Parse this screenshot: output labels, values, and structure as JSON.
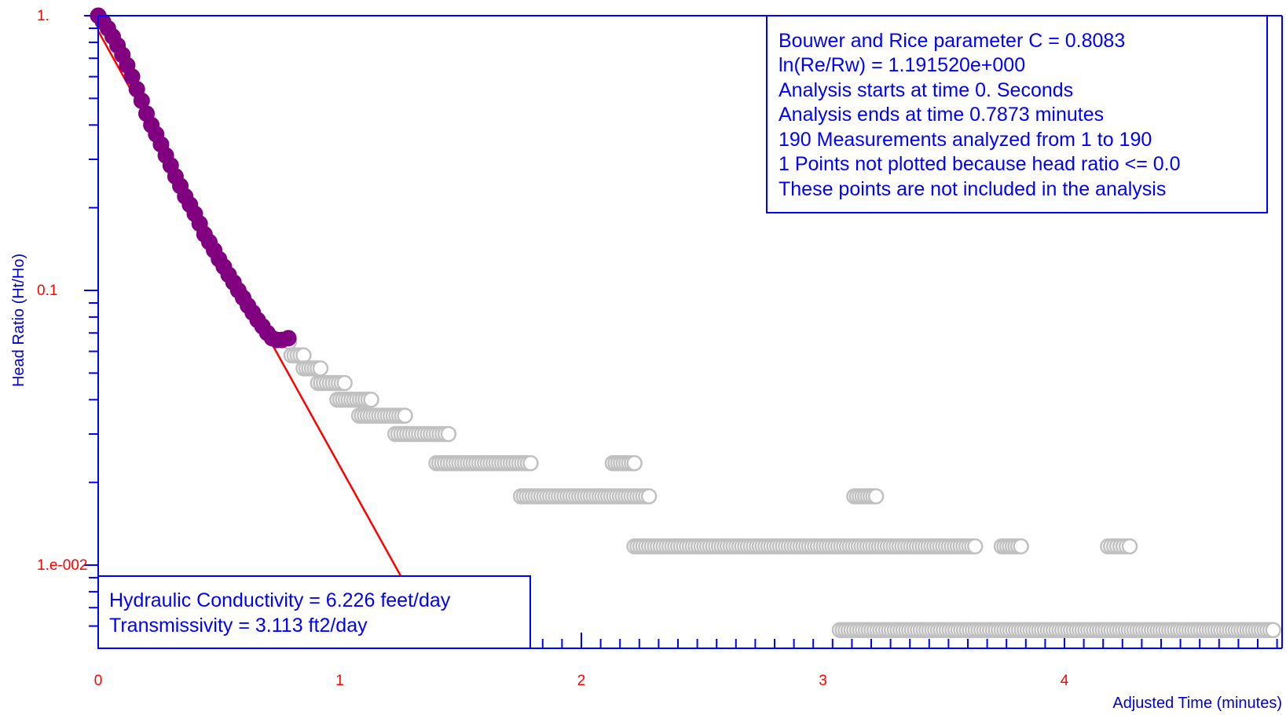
{
  "chart_data": {
    "type": "scatter",
    "title": "",
    "xlabel": "Adjusted Time (minutes)",
    "ylabel": "Head Ratio (Ht/Ho)",
    "x_scale": "linear",
    "y_scale": "log",
    "xlim": [
      0,
      4.9
    ],
    "ylim": [
      0.0065,
      1.0
    ],
    "x_ticks": [
      {
        "value": 0,
        "label": "0"
      },
      {
        "value": 1,
        "label": "1"
      },
      {
        "value": 2,
        "label": "2"
      },
      {
        "value": 3,
        "label": "3"
      },
      {
        "value": 4,
        "label": "4"
      }
    ],
    "y_ticks": [
      {
        "value": 1.0,
        "label": "1."
      },
      {
        "value": 0.1,
        "label": "0.1"
      },
      {
        "value": 0.01,
        "label": "1.e-002"
      }
    ],
    "grid": false,
    "series": [
      {
        "role": "analyzed",
        "color": "#800080",
        "marker": "filled-circle",
        "points": [
          [
            0.0,
            1.0
          ],
          [
            0.02,
            0.95
          ],
          [
            0.04,
            0.9
          ],
          [
            0.06,
            0.84
          ],
          [
            0.08,
            0.78
          ],
          [
            0.1,
            0.72
          ],
          [
            0.12,
            0.66
          ],
          [
            0.14,
            0.6
          ],
          [
            0.16,
            0.54
          ],
          [
            0.18,
            0.49
          ],
          [
            0.2,
            0.44
          ],
          [
            0.22,
            0.4
          ],
          [
            0.24,
            0.37
          ],
          [
            0.26,
            0.34
          ],
          [
            0.28,
            0.31
          ],
          [
            0.3,
            0.285
          ],
          [
            0.32,
            0.26
          ],
          [
            0.34,
            0.24
          ],
          [
            0.36,
            0.22
          ],
          [
            0.38,
            0.205
          ],
          [
            0.4,
            0.19
          ],
          [
            0.42,
            0.175
          ],
          [
            0.44,
            0.16
          ],
          [
            0.46,
            0.15
          ],
          [
            0.48,
            0.14
          ],
          [
            0.5,
            0.13
          ],
          [
            0.52,
            0.122
          ],
          [
            0.54,
            0.114
          ],
          [
            0.56,
            0.107
          ],
          [
            0.58,
            0.1
          ],
          [
            0.6,
            0.094
          ],
          [
            0.62,
            0.088
          ],
          [
            0.64,
            0.083
          ],
          [
            0.66,
            0.078
          ],
          [
            0.68,
            0.074
          ],
          [
            0.7,
            0.07
          ],
          [
            0.72,
            0.067
          ],
          [
            0.74,
            0.066
          ],
          [
            0.76,
            0.066
          ],
          [
            0.7873,
            0.067
          ]
        ]
      },
      {
        "role": "not-analyzed",
        "color": "#c0c0c0",
        "marker": "open-circle",
        "runs": [
          {
            "y": 0.065,
            "x_start": 0.79,
            "x_end": 0.79
          },
          {
            "y": 0.058,
            "x_start": 0.8,
            "x_end": 0.85
          },
          {
            "y": 0.052,
            "x_start": 0.85,
            "x_end": 0.92
          },
          {
            "y": 0.046,
            "x_start": 0.91,
            "x_end": 1.02
          },
          {
            "y": 0.04,
            "x_start": 0.99,
            "x_end": 1.13
          },
          {
            "y": 0.035,
            "x_start": 1.08,
            "x_end": 1.27
          },
          {
            "y": 0.03,
            "x_start": 1.23,
            "x_end": 1.45
          },
          {
            "y": 0.0235,
            "x_start": 1.4,
            "x_end": 1.79
          },
          {
            "y": 0.0235,
            "x_start": 2.13,
            "x_end": 2.22
          },
          {
            "y": 0.0178,
            "x_start": 1.75,
            "x_end": 2.28
          },
          {
            "y": 0.0178,
            "x_start": 3.13,
            "x_end": 3.22
          },
          {
            "y": 0.0117,
            "x_start": 2.22,
            "x_end": 3.63
          },
          {
            "y": 0.0117,
            "x_start": 3.74,
            "x_end": 3.82
          },
          {
            "y": 0.0117,
            "x_start": 4.18,
            "x_end": 4.27
          },
          {
            "y": 0.0058,
            "x_start": 3.07,
            "x_end": 4.9
          }
        ]
      }
    ],
    "fit_line": {
      "color": "#ff0000",
      "points": [
        [
          0.0,
          0.88
        ],
        [
          1.31,
          0.0074
        ]
      ]
    },
    "annotations": {
      "parameters": [
        "Bouwer and Rice parameter C = 0.8083",
        "ln(Re/Rw) = 1.191520e+000",
        "Analysis starts at time 0. Seconds",
        "Analysis ends at time 0.7873 minutes",
        "190 Measurements analyzed from 1 to 190",
        "1 Points not plotted because head ratio <= 0.0",
        "These points are not included in the analysis"
      ],
      "results": [
        "Hydraulic Conductivity = 6.226 feet/day",
        "Transmissivity = 3.113 ft2/day"
      ]
    },
    "axis_color": "#0000ff",
    "tick_label_color": "#ff0000"
  }
}
